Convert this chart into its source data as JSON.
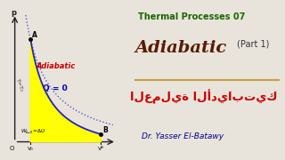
{
  "bg_color": "#e8e4dc",
  "panel_left_bg": "#ffffff",
  "title_line1": "Thermal Processes 07",
  "title_line2": "Adiabatic",
  "title_part": "(Part 1)",
  "arabic_title": "كيتابيدالأ ةيلمعلا",
  "arabic_display": "العملية الأديابتيك",
  "author": "Dr. Yasser El-Batawy",
  "label_adiabatic": "Adiabatic",
  "label_Q": "Q = 0",
  "label_T": "T=T₀",
  "label_A": "A",
  "label_B": "B",
  "label_VA": "V₀",
  "label_VB": "Vᴮ",
  "label_O": "O",
  "label_p": "p",
  "divider_color": "#c8a040",
  "title1_color": "#1a6600",
  "title2_color": "#5a1a00",
  "arabic_color": "#cc0000",
  "author_color": "#00008b",
  "adiabatic_label_color": "#cc0000",
  "Q_label_color": "#0000bb",
  "isothermal_color": "#4444cc",
  "adiabatic_curve_color": "#2222cc",
  "fill_color": "#ffff00",
  "axis_color": "#222222",
  "border_color": "#999999"
}
